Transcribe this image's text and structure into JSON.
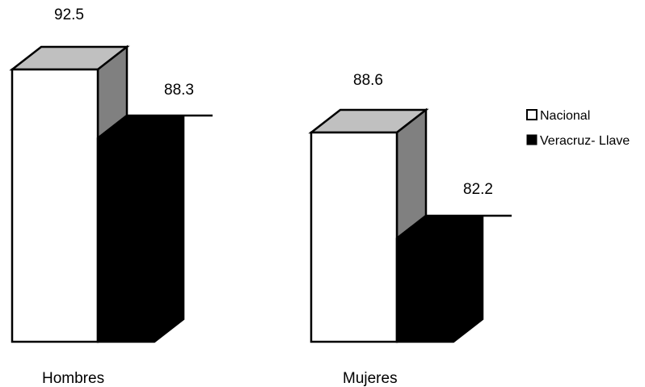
{
  "chart_data": {
    "type": "bar",
    "style": "3d-column",
    "title": "",
    "xlabel": "",
    "ylabel": "",
    "ylim": [
      0,
      92.5
    ],
    "grid": false,
    "legend_position": "right",
    "categories": [
      "Hombres",
      "Mujeres"
    ],
    "series": [
      {
        "name": "Nacional",
        "values": [
          92.5,
          88.6
        ],
        "color": "#ffffff"
      },
      {
        "name": "Veracruz- Llave",
        "values": [
          88.3,
          82.2
        ],
        "color": "#000000"
      }
    ],
    "data_labels": [
      "92.5",
      "88.3",
      "88.6",
      "82.2"
    ]
  },
  "colors": {
    "outline": "#000000",
    "top_face": "#c0c0c0",
    "side_face": "#808080",
    "background": "#ffffff"
  }
}
